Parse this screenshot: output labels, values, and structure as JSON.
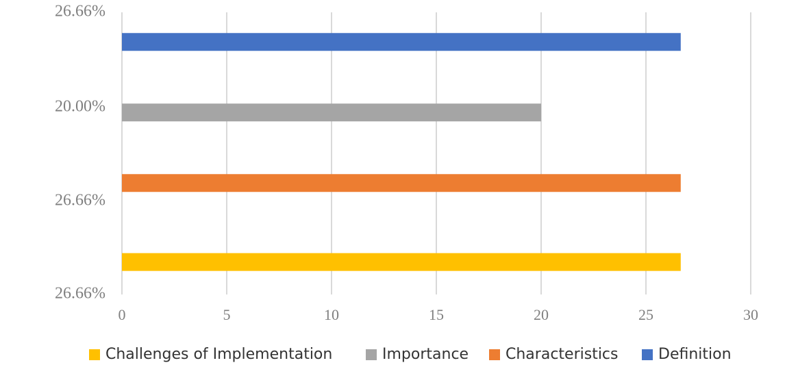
{
  "chart_data": {
    "type": "bar",
    "orientation": "horizontal",
    "categories": [
      "26.66%",
      "26.66%",
      "20.00%",
      "26.66%"
    ],
    "series": [
      {
        "name": "Challenges of Implementation",
        "color": "#FFC000",
        "values": [
          26.66,
          null,
          null,
          null
        ]
      },
      {
        "name": "Importance",
        "color": "#A5A5A5",
        "values": [
          null,
          null,
          20.0,
          null
        ]
      },
      {
        "name": "Characteristics",
        "color": "#ED7D31",
        "values": [
          null,
          26.66,
          null,
          null
        ]
      },
      {
        "name": "Definition",
        "color": "#4472C4",
        "values": [
          null,
          null,
          null,
          26.66
        ]
      }
    ],
    "x_ticks": [
      "0",
      "5",
      "10",
      "15",
      "20",
      "25",
      "30"
    ],
    "xlim": [
      0,
      30
    ],
    "grid": "vertical",
    "legend_position": "bottom",
    "title": "",
    "xlabel": "",
    "ylabel": ""
  }
}
